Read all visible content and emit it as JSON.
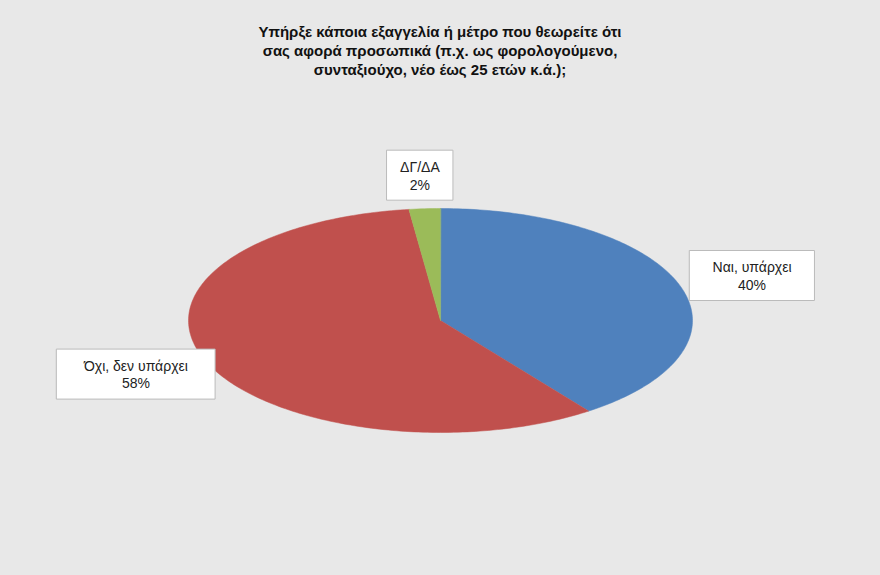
{
  "chart_data": {
    "type": "pie",
    "title": "Υπήρξε κάποια εξαγγελία ή μέτρο που θεωρείτε ότι σας αφορά προσωπικά (π.χ. ως φορολογούμενο, συνταξιούχο, νέο έως 25 ετών κ.ά.);",
    "categories": [
      "Ναι, υπάρχει",
      "Όχι, δεν υπάρχει",
      "ΔΓ/ΔΑ"
    ],
    "values": [
      40,
      58,
      2
    ],
    "value_labels": [
      "40%",
      "58%",
      "2%"
    ],
    "colors": [
      "#4f81bd",
      "#c0504d",
      "#9bbb59"
    ],
    "data_labels": true
  }
}
